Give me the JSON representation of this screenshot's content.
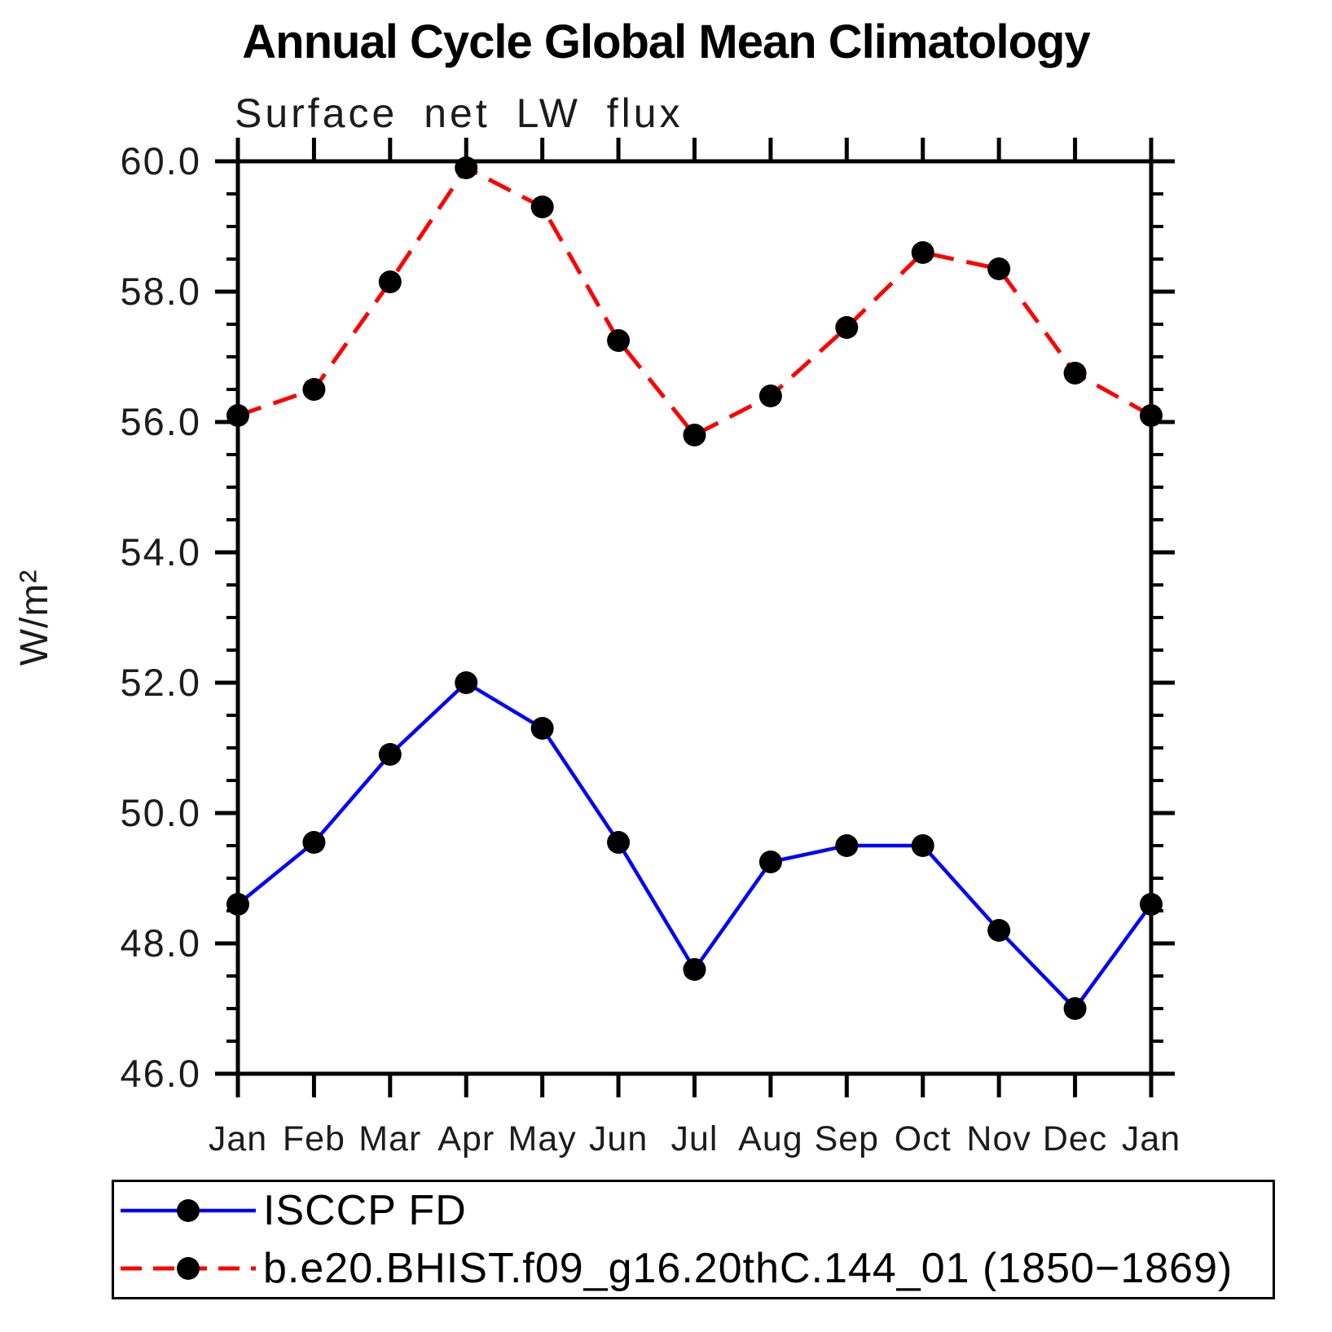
{
  "chart": {
    "title": "Annual Cycle Global Mean Climatology",
    "subtitle": "Surface net LW flux"
  },
  "chart_data": {
    "type": "line",
    "title": "Annual Cycle Global Mean Climatology",
    "subtitle": "Surface net LW flux",
    "xlabel": "",
    "ylabel": "W/m²",
    "x_categories": [
      "Jan",
      "Feb",
      "Mar",
      "Apr",
      "May",
      "Jun",
      "Jul",
      "Aug",
      "Sep",
      "Oct",
      "Nov",
      "Dec",
      "Jan"
    ],
    "ylim": [
      46.0,
      60.0
    ],
    "y_major_ticks": [
      46,
      48,
      50,
      52,
      54,
      56,
      58,
      60
    ],
    "y_tick_labels": [
      "46.0",
      "48.0",
      "50.0",
      "52.0",
      "54.0",
      "56.0",
      "58.0",
      "60.0"
    ],
    "y_minor_step": 0.5,
    "grid": false,
    "legend_position": "bottom-left",
    "marker_color": "#000000",
    "axis_color": "#000000",
    "series": [
      {
        "name": "ISCCP FD",
        "color": "#0000ff",
        "line_style": "solid",
        "marker": "circle",
        "values": [
          48.6,
          49.55,
          50.9,
          52.0,
          51.3,
          49.55,
          47.6,
          49.25,
          49.5,
          49.5,
          48.2,
          47.0,
          48.6
        ]
      },
      {
        "name": "b.e20.BHIST.f09_g16.20thC.144_01 (1850−1869)",
        "color": "#ff0000",
        "line_style": "dashed",
        "marker": "circle",
        "values": [
          56.1,
          56.5,
          58.15,
          59.9,
          59.3,
          57.25,
          55.8,
          56.4,
          57.45,
          58.6,
          58.35,
          56.75,
          56.1
        ]
      }
    ]
  },
  "legend": {
    "items": [
      {
        "label": "ISCCP FD"
      },
      {
        "label": "b.e20.BHIST.f09_g16.20thC.144_01 (1850−1869)"
      }
    ]
  }
}
